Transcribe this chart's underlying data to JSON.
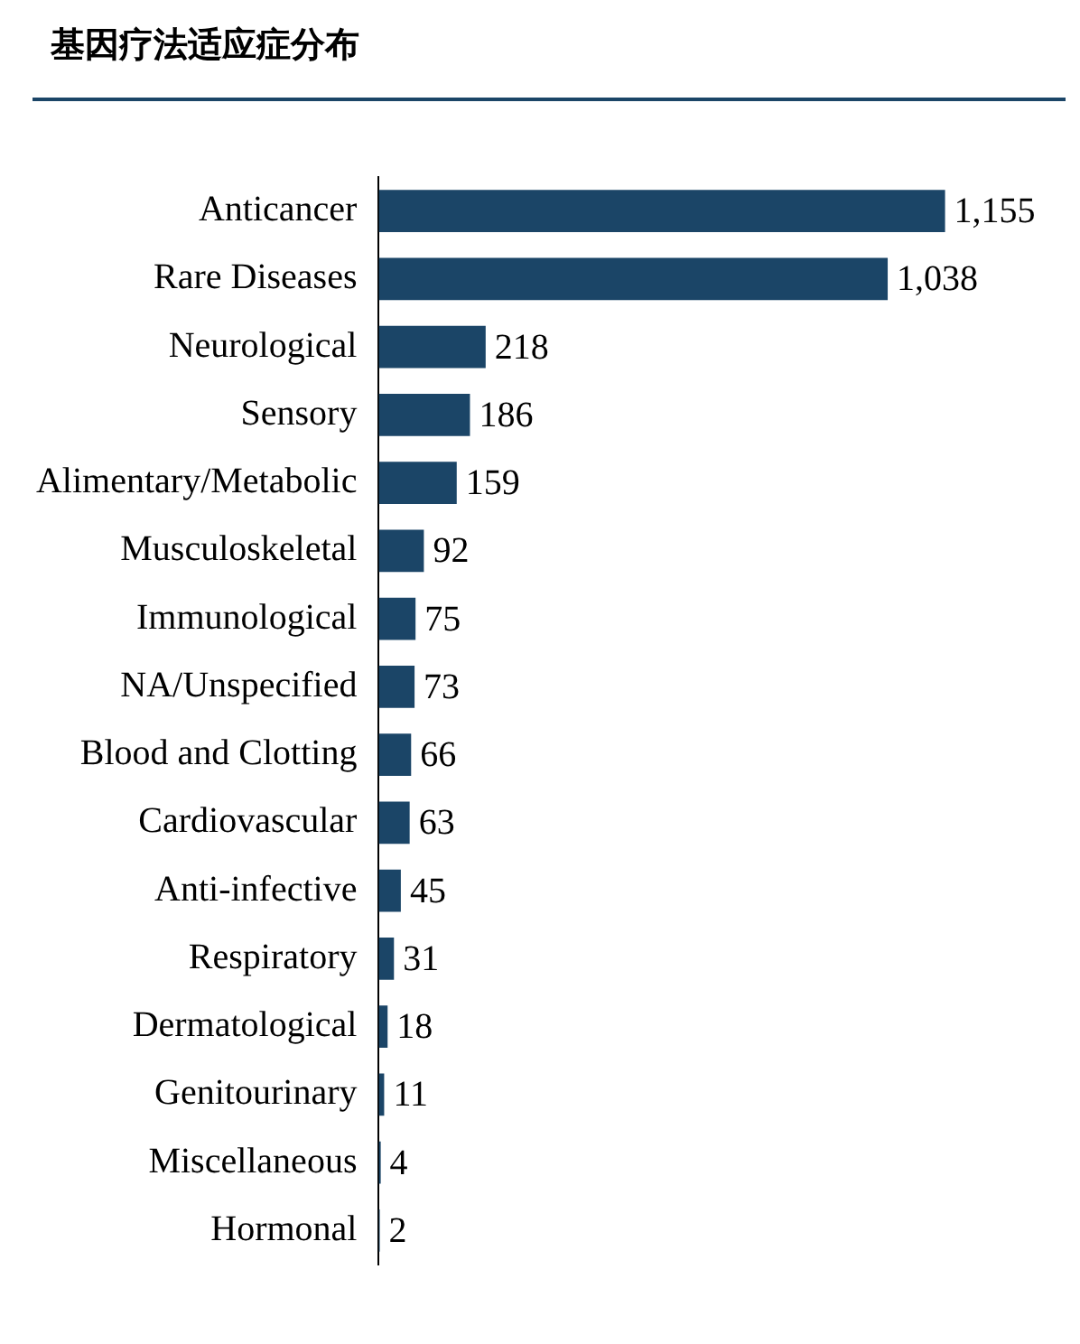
{
  "chart_data": {
    "type": "bar",
    "orientation": "horizontal",
    "tick_labels": "y",
    "title": "基因疗法适应症分布",
    "categories": [
      "Anticancer",
      "Rare Diseases",
      "Neurological",
      "Sensory",
      "Alimentary/Metabolic",
      "Musculoskeletal",
      "Immunological",
      "NA/Unspecified",
      "Blood and Clotting",
      "Cardiovascular",
      "Anti-infective",
      "Respiratory",
      "Dermatological",
      "Genitourinary",
      "Miscellaneous",
      "Hormonal"
    ],
    "values": [
      1155,
      1038,
      218,
      186,
      159,
      92,
      75,
      73,
      66,
      63,
      45,
      31,
      18,
      11,
      4,
      2
    ],
    "value_labels": [
      "1,155",
      "1,038",
      "218",
      "186",
      "159",
      "92",
      "75",
      "73",
      "66",
      "63",
      "45",
      "31",
      "18",
      "11",
      "4",
      "2"
    ],
    "color": "#1b4567",
    "legend": false
  }
}
